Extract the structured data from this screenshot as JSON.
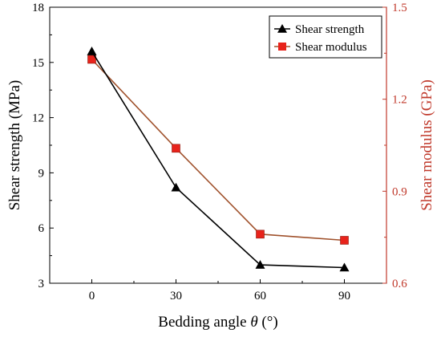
{
  "chart_data": {
    "type": "line",
    "x": [
      0,
      30,
      60,
      90
    ],
    "xlim": [
      -15,
      105
    ],
    "xticks": [
      0,
      30,
      60,
      90
    ],
    "xlabel_prefix": "Bedding angle ",
    "xlabel_symbol": "θ",
    "xlabel_suffix": " (°)",
    "y_left": {
      "label": "Shear strength (MPa)",
      "lim": [
        3,
        18
      ],
      "ticks": [
        3,
        6,
        9,
        12,
        15,
        18
      ],
      "color": "#000000"
    },
    "y_right": {
      "label": "Shear modulus (GPa)",
      "lim": [
        0.6,
        1.5
      ],
      "ticks": [
        "0.6",
        "0.9",
        "1.2",
        "1.5"
      ],
      "color": "#c0392b"
    },
    "series": [
      {
        "name": "Shear strength",
        "axis": "left",
        "marker": "triangle",
        "line_color": "#000000",
        "marker_color": "#000000",
        "values": [
          15.6,
          8.2,
          4.0,
          3.85
        ]
      },
      {
        "name": "Shear modulus",
        "axis": "right",
        "marker": "square",
        "line_color": "#a0522d",
        "marker_color": "#e8231b",
        "values": [
          1.33,
          1.04,
          0.76,
          0.74
        ]
      }
    ],
    "legend_position": "top-right",
    "grid": false
  }
}
